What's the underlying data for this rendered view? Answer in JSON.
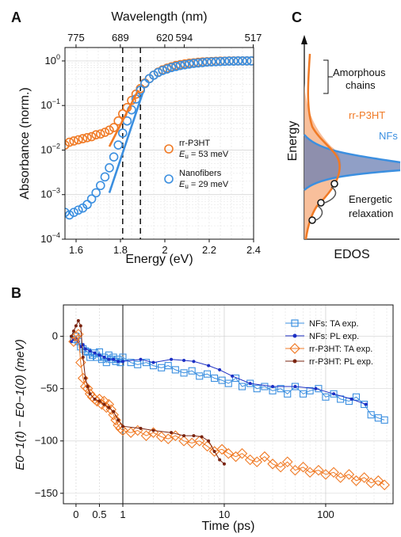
{
  "panel_labels": {
    "a": "A",
    "b": "B",
    "c": "C"
  },
  "colors": {
    "rr": "#f07a25",
    "nf": "#3b8fe0",
    "nf_pl": "#1c2fc4",
    "rr_pl": "#7a2410",
    "nf_fill": "#6b7fb3",
    "rr_fill": "#f7b48a"
  },
  "chart_data": [
    {
      "type": "scatter",
      "panel": "A",
      "xlabel": "Energy (eV)",
      "ylabel": "Absorbance (norm.)",
      "top_xlabel": "Wavelength (nm)",
      "top_ticks": [
        "775",
        "689",
        "620",
        "594",
        "517"
      ],
      "x_ticks": [
        "1.6",
        "1.8",
        "2",
        "2.2",
        "2.4"
      ],
      "y_ticks": [
        "10^-4",
        "10^-3",
        "10^-2",
        "10^-1",
        "10^0"
      ],
      "xlim": [
        1.55,
        2.4
      ],
      "ylim": [
        0.0001,
        2
      ],
      "y_scale": "log",
      "dashed_lines_x": [
        1.81,
        1.89
      ],
      "legend": [
        {
          "name": "rr-P3HT",
          "sub": "E",
          "subscript": "u",
          "value": " = 53 meV"
        },
        {
          "name": "Nanofibers",
          "sub": "E",
          "subscript": "u",
          "value": " = 29 meV"
        }
      ],
      "series": [
        {
          "name": "rr-P3HT",
          "x": [
            1.55,
            1.57,
            1.59,
            1.61,
            1.63,
            1.65,
            1.67,
            1.69,
            1.71,
            1.73,
            1.75,
            1.77,
            1.79,
            1.81,
            1.83,
            1.85,
            1.87,
            1.89,
            1.91,
            1.93,
            1.95,
            1.97,
            1.99,
            2.01,
            2.03,
            2.05,
            2.07,
            2.09,
            2.11,
            2.13,
            2.15,
            2.17,
            2.19,
            2.21,
            2.23,
            2.25,
            2.27,
            2.29,
            2.31,
            2.33,
            2.35,
            2.37,
            2.39
          ],
          "y": [
            0.013,
            0.015,
            0.016,
            0.017,
            0.018,
            0.019,
            0.02,
            0.022,
            0.023,
            0.025,
            0.028,
            0.032,
            0.045,
            0.065,
            0.09,
            0.13,
            0.18,
            0.24,
            0.32,
            0.4,
            0.48,
            0.56,
            0.63,
            0.69,
            0.74,
            0.79,
            0.83,
            0.86,
            0.89,
            0.91,
            0.93,
            0.95,
            0.96,
            0.97,
            0.98,
            0.99,
            0.99,
            1.0,
            1.0,
            1.0,
            1.0,
            1.0,
            1.0
          ]
        },
        {
          "name": "Nanofibers",
          "x": [
            1.55,
            1.57,
            1.59,
            1.61,
            1.63,
            1.65,
            1.67,
            1.69,
            1.71,
            1.73,
            1.75,
            1.77,
            1.79,
            1.81,
            1.83,
            1.85,
            1.87,
            1.89,
            1.91,
            1.93,
            1.95,
            1.97,
            1.99,
            2.01,
            2.03,
            2.05,
            2.07,
            2.09,
            2.11,
            2.13,
            2.15,
            2.17,
            2.19,
            2.21,
            2.23,
            2.25,
            2.27,
            2.29,
            2.31,
            2.33,
            2.35,
            2.37,
            2.39
          ],
          "y": [
            0.0004,
            0.00035,
            0.0004,
            0.00045,
            0.0005,
            0.0006,
            0.0008,
            0.0011,
            0.0016,
            0.0025,
            0.004,
            0.007,
            0.013,
            0.024,
            0.045,
            0.08,
            0.14,
            0.22,
            0.31,
            0.4,
            0.48,
            0.55,
            0.61,
            0.66,
            0.71,
            0.75,
            0.79,
            0.82,
            0.85,
            0.88,
            0.9,
            0.92,
            0.94,
            0.95,
            0.96,
            0.97,
            0.98,
            0.99,
            0.99,
            1.0,
            1.0,
            1.0,
            1.0
          ]
        }
      ],
      "fits": [
        {
          "name": "rr-P3HT fit",
          "x": [
            1.75,
            1.88
          ],
          "y": [
            0.012,
            0.22
          ]
        },
        {
          "name": "Nanofibers fit",
          "x": [
            1.75,
            1.9
          ],
          "y": [
            0.0011,
            0.19
          ]
        }
      ]
    },
    {
      "type": "line",
      "panel": "B",
      "xlabel": "Time (ps)",
      "ylabel": "E0−1(t) − E0−1(0) (meV)",
      "x_ticks": [
        "0",
        "0.5",
        "1",
        "10",
        "100"
      ],
      "y_ticks": [
        "0",
        "-50",
        "-100",
        "-150"
      ],
      "x_scale": "linear below 1 ps, log above 1 ps",
      "xlim": [
        -0.1,
        400
      ],
      "ylim": [
        -160,
        30
      ],
      "legend": [
        "NFs: TA exp.",
        "NFs: PL exp.",
        "rr-P3HT: TA exp.",
        "rr-P3HT: PL exp."
      ],
      "series": [
        {
          "name": "NFs: TA exp.",
          "x": [
            -0.05,
            0.0,
            0.05,
            0.1,
            0.15,
            0.2,
            0.25,
            0.3,
            0.35,
            0.4,
            0.45,
            0.5,
            0.55,
            0.6,
            0.65,
            0.7,
            0.75,
            0.8,
            0.85,
            0.9,
            0.95,
            1.0,
            1.2,
            1.4,
            1.7,
            2.0,
            2.4,
            2.8,
            3.3,
            4.0,
            4.8,
            5.7,
            6.8,
            8.0,
            9.5,
            11,
            13,
            15,
            18,
            21,
            25,
            30,
            36,
            42,
            50,
            60,
            70,
            85,
            100,
            120,
            140,
            170,
            200,
            240,
            280,
            330,
            380
          ],
          "y": [
            -3,
            0,
            -5,
            -10,
            -12,
            -14,
            -15,
            -20,
            -18,
            -16,
            -20,
            -15,
            -22,
            -20,
            -25,
            -18,
            -22,
            -20,
            -24,
            -22,
            -25,
            -20,
            -25,
            -27,
            -25,
            -28,
            -30,
            -28,
            -32,
            -35,
            -33,
            -38,
            -36,
            -40,
            -42,
            -45,
            -40,
            -48,
            -45,
            -50,
            -48,
            -52,
            -50,
            -55,
            -48,
            -55,
            -52,
            -50,
            -58,
            -55,
            -60,
            -62,
            -58,
            -65,
            -75,
            -78,
            -80
          ]
        },
        {
          "name": "NFs: PL exp.",
          "x": [
            -0.1,
            -0.05,
            0.0,
            0.05,
            0.1,
            0.15,
            0.2,
            0.3,
            0.4,
            0.5,
            0.6,
            0.7,
            0.8,
            0.9,
            1.0,
            1.5,
            2.0,
            3.0,
            4.0,
            5.0,
            7.0,
            9.0,
            12,
            18,
            30,
            50,
            80,
            120,
            180,
            250
          ],
          "y": [
            -5,
            -3,
            -2,
            -5,
            -10,
            -8,
            -12,
            -14,
            -16,
            -18,
            -20,
            -22,
            -22,
            -24,
            -24,
            -22,
            -25,
            -22,
            -23,
            -24,
            -28,
            -32,
            -38,
            -45,
            -48,
            -48,
            -50,
            -55,
            -60,
            -65
          ]
        },
        {
          "name": "rr-P3HT: TA exp.",
          "x": [
            -0.05,
            0.0,
            0.05,
            0.1,
            0.15,
            0.2,
            0.25,
            0.3,
            0.35,
            0.4,
            0.45,
            0.5,
            0.55,
            0.6,
            0.65,
            0.7,
            0.75,
            0.8,
            0.85,
            0.9,
            0.95,
            1.0,
            1.2,
            1.4,
            1.7,
            2.0,
            2.4,
            2.8,
            3.3,
            4.0,
            4.8,
            5.7,
            6.8,
            8.0,
            9.5,
            11,
            13,
            15,
            18,
            21,
            25,
            30,
            36,
            42,
            50,
            60,
            70,
            85,
            100,
            120,
            140,
            170,
            200,
            240,
            280,
            330,
            380
          ],
          "y": [
            -5,
            0,
            2,
            -25,
            -40,
            -48,
            -50,
            -55,
            -58,
            -60,
            -62,
            -60,
            -65,
            -62,
            -68,
            -65,
            -70,
            -75,
            -80,
            -85,
            -88,
            -90,
            -92,
            -90,
            -95,
            -92,
            -96,
            -98,
            -95,
            -100,
            -102,
            -100,
            -105,
            -110,
            -108,
            -112,
            -115,
            -112,
            -118,
            -120,
            -115,
            -122,
            -125,
            -120,
            -128,
            -125,
            -130,
            -128,
            -132,
            -130,
            -135,
            -132,
            -138,
            -135,
            -140,
            -138,
            -142
          ]
        },
        {
          "name": "rr-P3HT: PL exp.",
          "x": [
            -0.1,
            -0.05,
            0.0,
            0.05,
            0.1,
            0.15,
            0.2,
            0.25,
            0.3,
            0.4,
            0.5,
            0.6,
            0.7,
            0.8,
            0.9,
            1.0,
            1.5,
            2.0,
            3.0,
            4.0,
            5.0,
            6.0,
            7.0,
            8.0,
            9.0,
            10
          ],
          "y": [
            0,
            5,
            10,
            15,
            10,
            -20,
            -40,
            -48,
            -55,
            -60,
            -62,
            -65,
            -68,
            -72,
            -80,
            -86,
            -88,
            -90,
            -92,
            -95,
            -95,
            -96,
            -100,
            -110,
            -118,
            -122
          ]
        }
      ]
    },
    {
      "type": "diagram",
      "panel": "C",
      "xlabel": "EDOS",
      "ylabel": "Energy",
      "labels": {
        "brace": [
          "Amorphous",
          "chains"
        ],
        "rr": "rr-P3HT",
        "nf": "NFs",
        "relax": [
          "Energetic",
          "relaxation"
        ]
      }
    }
  ]
}
